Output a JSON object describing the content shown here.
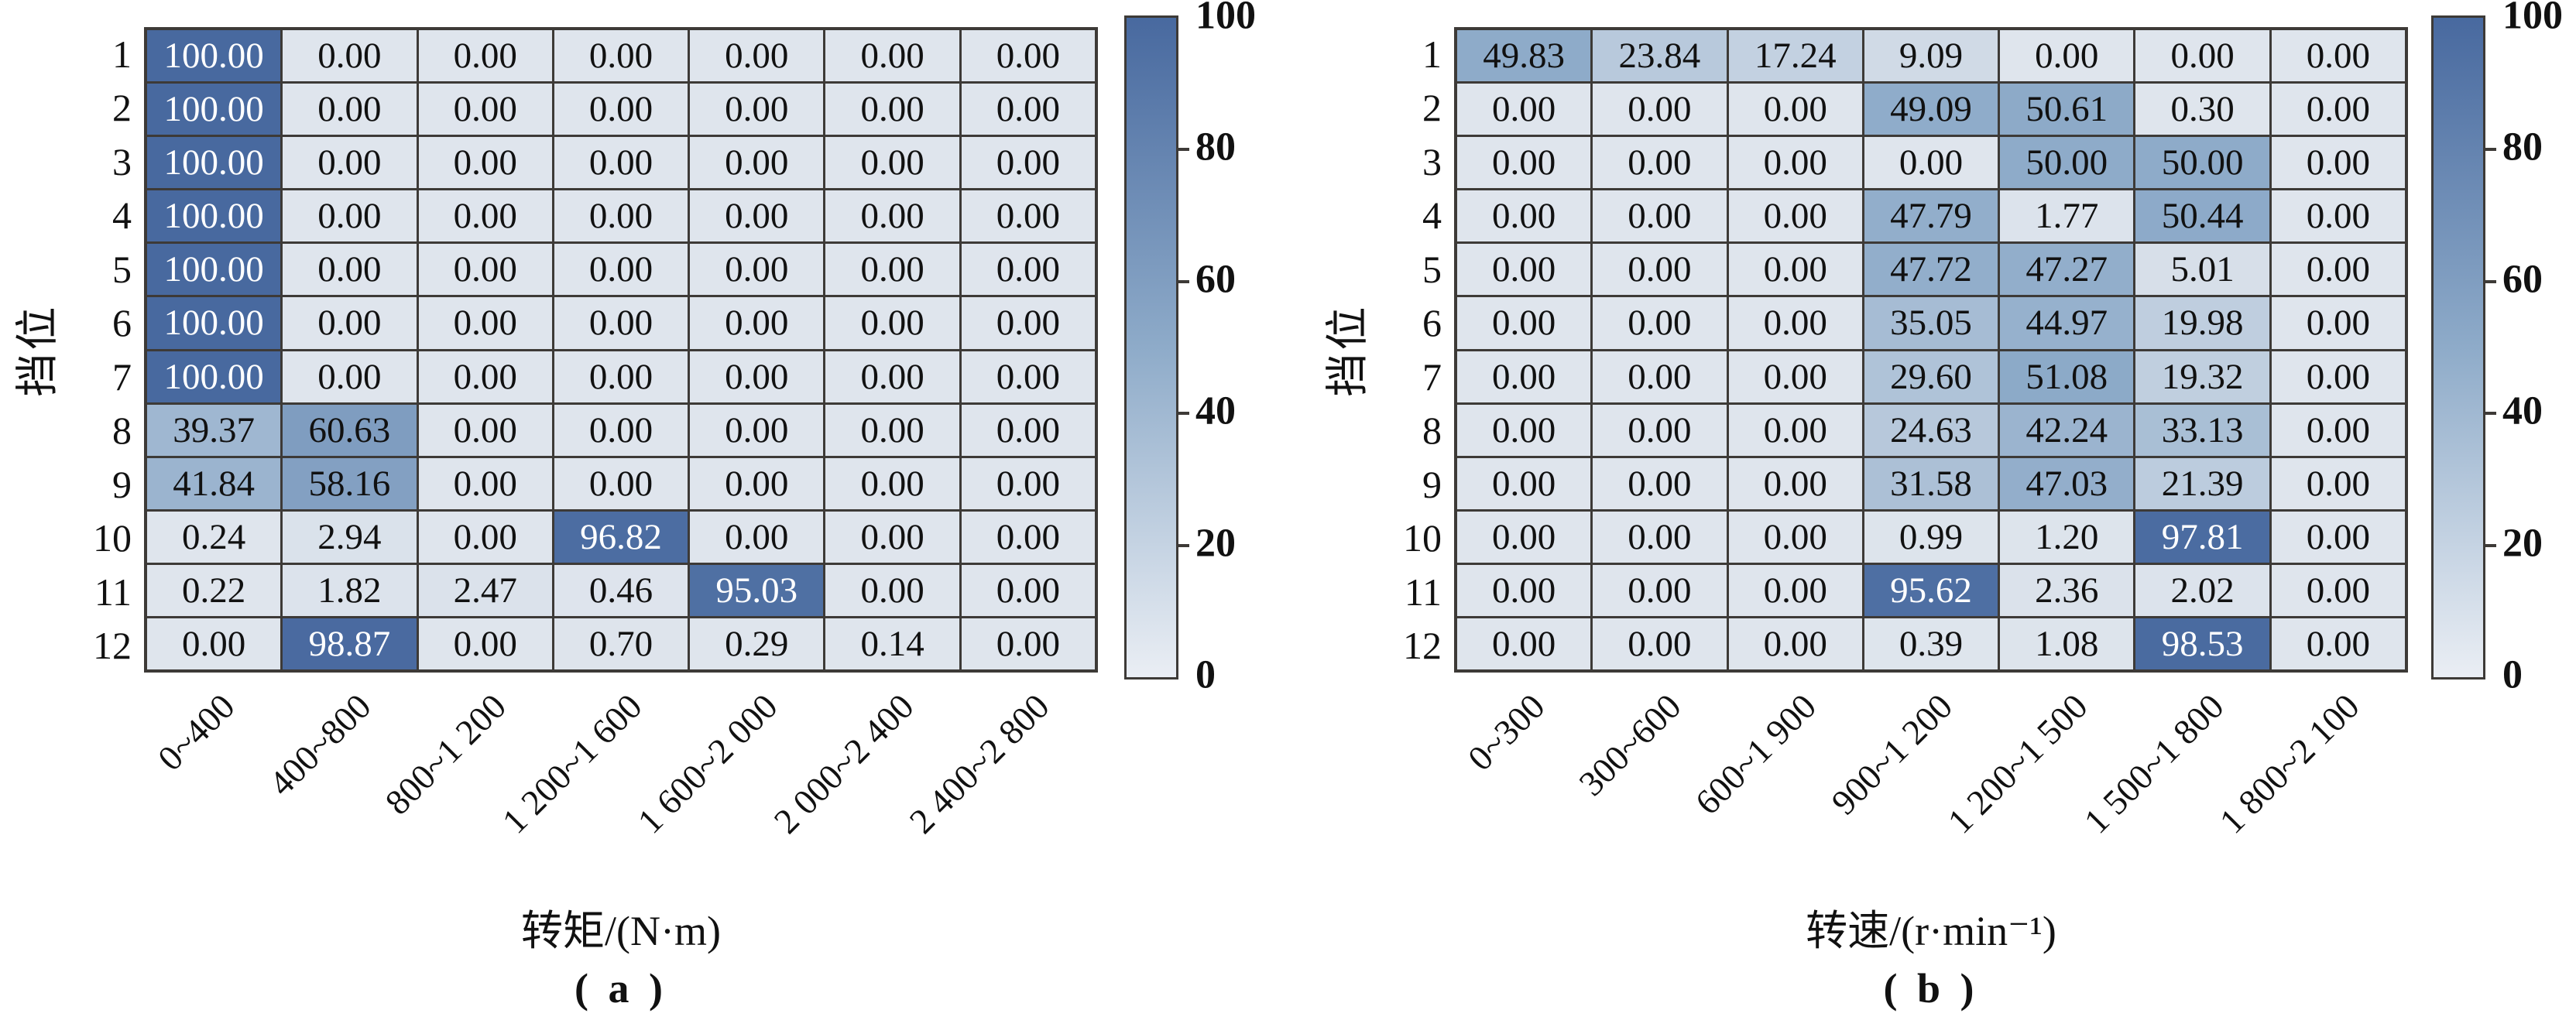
{
  "colors": {
    "cmap_min": "#dfe5ed",
    "cmap_mid": "#8eabc9",
    "cmap_max": "#48699f",
    "grid_line": "#3d3a37",
    "cell_text_dark": "#111111",
    "cell_text_light": "#ffffff"
  },
  "chart_data": [
    {
      "type": "heatmap",
      "panel": "a",
      "title": "( a )",
      "xlabel": "转矩/(N·m)",
      "ylabel": "挡位",
      "rows": [
        "1",
        "2",
        "3",
        "4",
        "5",
        "6",
        "7",
        "8",
        "9",
        "10",
        "11",
        "12"
      ],
      "columns": [
        "0~400",
        "400~800",
        "800~1 200",
        "1 200~1 600",
        "1 600~2 000",
        "2 000~2 400",
        "2 400~2 800"
      ],
      "values": [
        [
          100.0,
          0.0,
          0.0,
          0.0,
          0.0,
          0.0,
          0.0
        ],
        [
          100.0,
          0.0,
          0.0,
          0.0,
          0.0,
          0.0,
          0.0
        ],
        [
          100.0,
          0.0,
          0.0,
          0.0,
          0.0,
          0.0,
          0.0
        ],
        [
          100.0,
          0.0,
          0.0,
          0.0,
          0.0,
          0.0,
          0.0
        ],
        [
          100.0,
          0.0,
          0.0,
          0.0,
          0.0,
          0.0,
          0.0
        ],
        [
          100.0,
          0.0,
          0.0,
          0.0,
          0.0,
          0.0,
          0.0
        ],
        [
          100.0,
          0.0,
          0.0,
          0.0,
          0.0,
          0.0,
          0.0
        ],
        [
          39.37,
          60.63,
          0.0,
          0.0,
          0.0,
          0.0,
          0.0
        ],
        [
          41.84,
          58.16,
          0.0,
          0.0,
          0.0,
          0.0,
          0.0
        ],
        [
          0.24,
          2.94,
          0.0,
          96.82,
          0.0,
          0.0,
          0.0
        ],
        [
          0.22,
          1.82,
          2.47,
          0.46,
          95.03,
          0.0,
          0.0
        ],
        [
          0.0,
          98.87,
          0.0,
          0.7,
          0.29,
          0.14,
          0.0
        ]
      ],
      "colorbar": {
        "min": 0,
        "max": 100,
        "ticks": [
          100,
          80,
          60,
          40,
          20,
          0
        ]
      }
    },
    {
      "type": "heatmap",
      "panel": "b",
      "title": "( b )",
      "xlabel": "转速/(r·min⁻¹)",
      "ylabel": "挡位",
      "rows": [
        "1",
        "2",
        "3",
        "4",
        "5",
        "6",
        "7",
        "8",
        "9",
        "10",
        "11",
        "12"
      ],
      "columns": [
        "0~300",
        "300~600",
        "600~1 900",
        "900~1 200",
        "1 200~1 500",
        "1 500~1 800",
        "1 800~2 100"
      ],
      "values": [
        [
          49.83,
          23.84,
          17.24,
          9.09,
          0.0,
          0.0,
          0.0
        ],
        [
          0.0,
          0.0,
          0.0,
          49.09,
          50.61,
          0.3,
          0.0
        ],
        [
          0.0,
          0.0,
          0.0,
          0.0,
          50.0,
          50.0,
          0.0
        ],
        [
          0.0,
          0.0,
          0.0,
          47.79,
          1.77,
          50.44,
          0.0
        ],
        [
          0.0,
          0.0,
          0.0,
          47.72,
          47.27,
          5.01,
          0.0
        ],
        [
          0.0,
          0.0,
          0.0,
          35.05,
          44.97,
          19.98,
          0.0
        ],
        [
          0.0,
          0.0,
          0.0,
          29.6,
          51.08,
          19.32,
          0.0
        ],
        [
          0.0,
          0.0,
          0.0,
          24.63,
          42.24,
          33.13,
          0.0
        ],
        [
          0.0,
          0.0,
          0.0,
          31.58,
          47.03,
          21.39,
          0.0
        ],
        [
          0.0,
          0.0,
          0.0,
          0.99,
          1.2,
          97.81,
          0.0
        ],
        [
          0.0,
          0.0,
          0.0,
          95.62,
          2.36,
          2.02,
          0.0
        ],
        [
          0.0,
          0.0,
          0.0,
          0.39,
          1.08,
          98.53,
          0.0
        ]
      ],
      "colorbar": {
        "min": 0,
        "max": 100,
        "ticks": [
          100,
          80,
          60,
          40,
          20,
          0
        ]
      }
    }
  ]
}
